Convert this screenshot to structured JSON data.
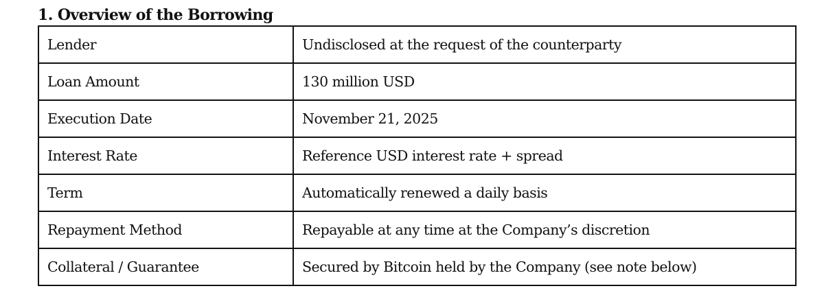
{
  "title": "1. Overview of the Borrowing",
  "rows": [
    {
      "label": "Lender",
      "value": "Undisclosed at the request of the counterparty"
    },
    {
      "label": "Loan Amount",
      "value": "130 million USD"
    },
    {
      "label": "Execution Date",
      "value": "November 21, 2025"
    },
    {
      "label": "Interest Rate",
      "value": "Reference USD interest rate + spread"
    },
    {
      "label": "Term",
      "value": "Automatically renewed a daily basis"
    },
    {
      "label": "Repayment Method",
      "value": "Repayable at any time at the Company’s discretion"
    },
    {
      "label": "Collateral / Guarantee",
      "value": "Secured by Bitcoin held by the Company (see note below)"
    }
  ]
}
